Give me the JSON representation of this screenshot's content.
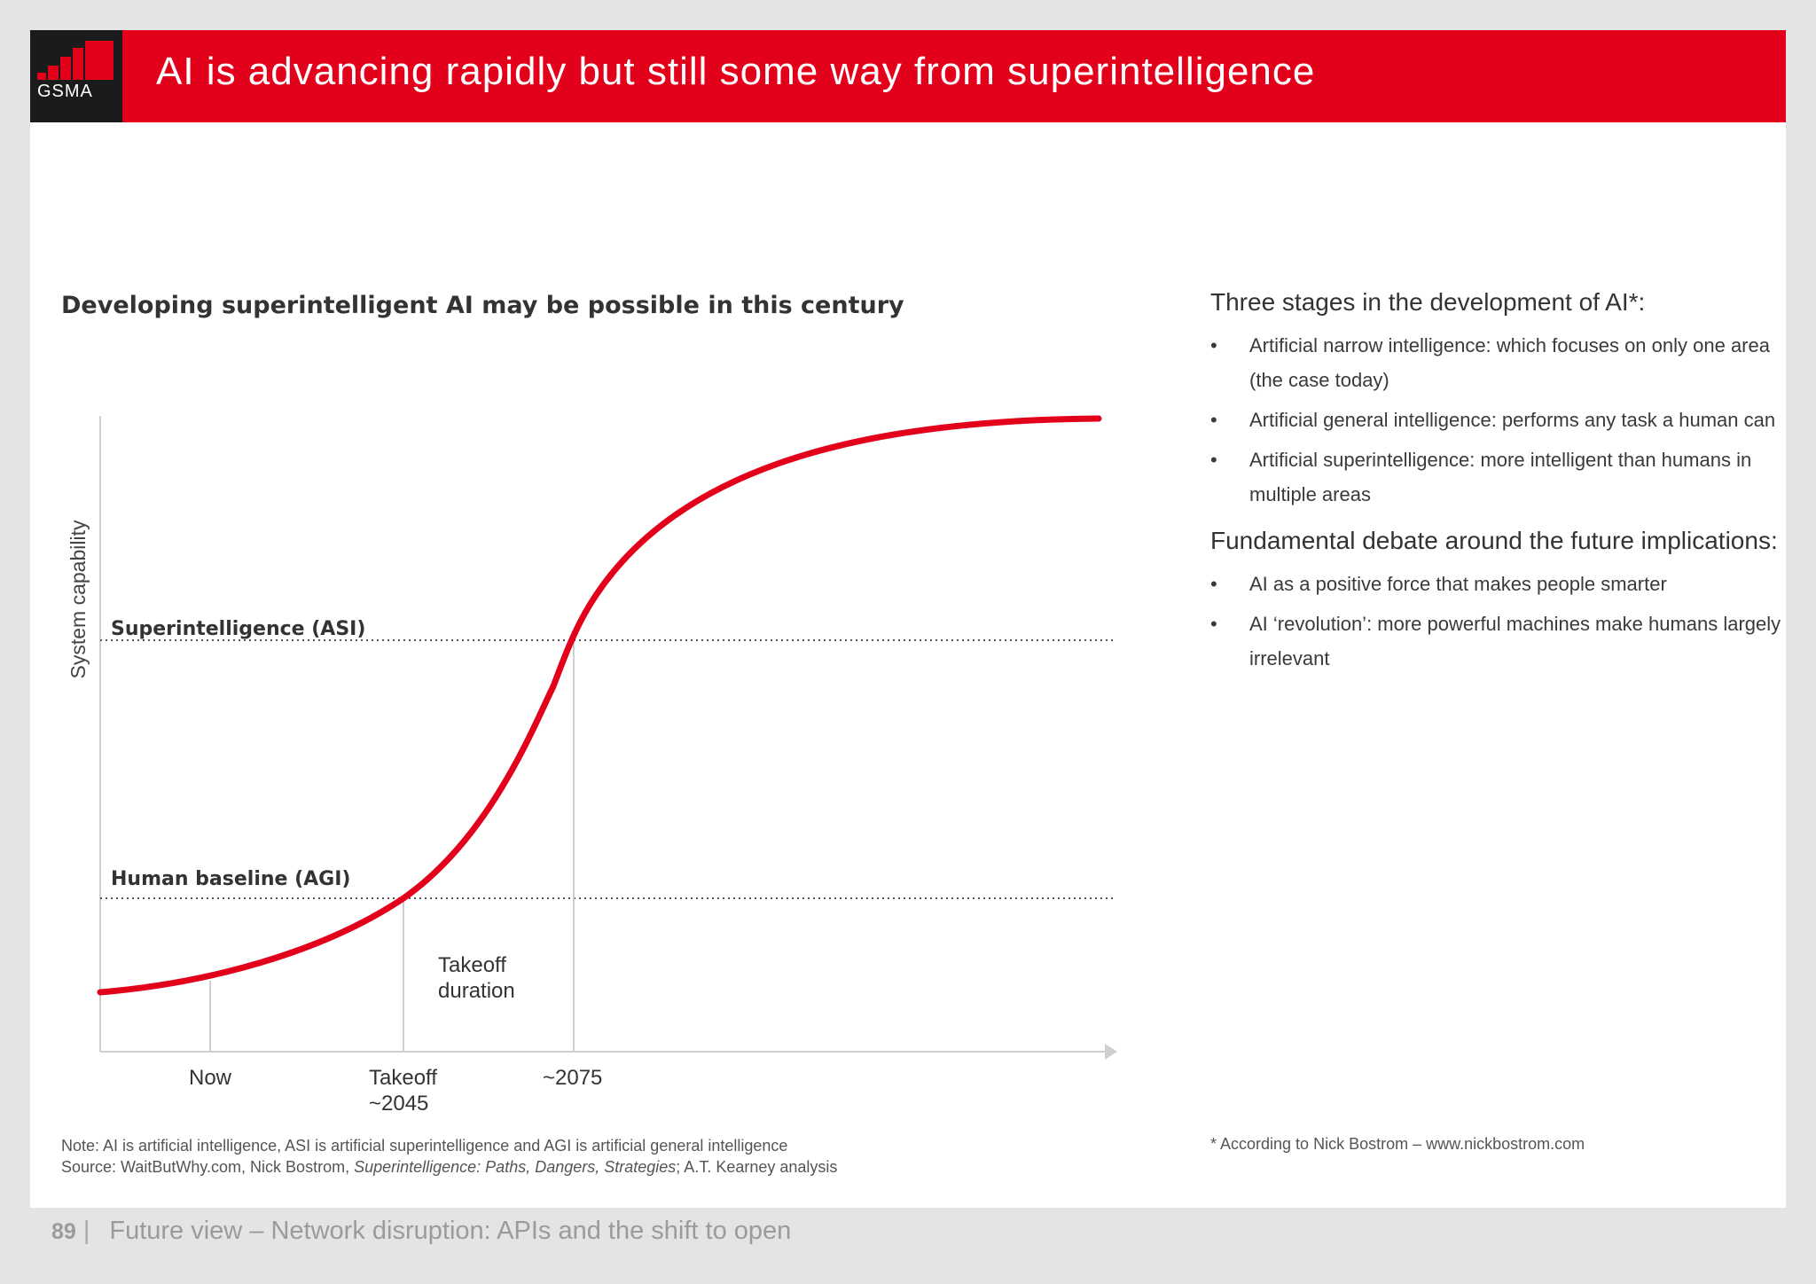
{
  "header": {
    "logo_text": "GSMA",
    "title": "AI is advancing rapidly but still some way from superintelligence",
    "accent_color": "#e2001a"
  },
  "chart": {
    "title": "Developing superintelligent AI may be possible in this century",
    "y_axis_label": "System capability",
    "threshold_asi_label": "Superintelligence (ASI)",
    "threshold_agi_label": "Human baseline (AGI)",
    "takeoff_note_line1": "Takeoff",
    "takeoff_note_line2": "duration",
    "tick_now": "Now",
    "tick_takeoff_line1": "Takeoff",
    "tick_takeoff_line2": "~2045",
    "tick_2075": "~2075",
    "curve_color": "#e2001a"
  },
  "chart_data": {
    "type": "line",
    "title": "Developing superintelligent AI may be possible in this century",
    "ylabel": "System capability",
    "xlabel": "",
    "x_ticks": [
      "Now",
      "Takeoff ~2045",
      "~2075"
    ],
    "reference_lines": [
      {
        "label": "Human baseline (AGI)",
        "value": 0.24
      },
      {
        "label": "Superintelligence (ASI)",
        "value": 0.64
      }
    ],
    "series": [
      {
        "values": [
          0.09,
          0.12,
          0.24,
          0.64,
          0.99
        ]
      }
    ],
    "grid": false
  },
  "side": {
    "heading1": "Three stages in the development of AI*:",
    "stages": [
      "Artificial narrow intelligence: which focuses on only one area (the case today)",
      "Artificial general intelligence: performs any task a human can",
      "Artificial superintelligence: more intelligent than humans in multiple areas"
    ],
    "heading2": "Fundamental debate around the future implications:",
    "debate": [
      "AI as a positive force that makes people smarter",
      "AI ‘revolution’: more powerful machines make humans largely irrelevant"
    ],
    "bullet": "•"
  },
  "notes": {
    "note_line": "Note: AI is artificial intelligence, ASI is artificial superintelligence and AGI is artificial general intelligence",
    "source_prefix": "Source: WaitButWhy.com, Nick Bostrom, ",
    "source_italic": "Superintelligence: Paths, Dangers, Strategies",
    "source_suffix": "; A.T. Kearney analysis",
    "footnote": "* According to Nick Bostrom – www.nickbostrom.com"
  },
  "footer": {
    "page_number": "89",
    "separator": "|",
    "text": "Future view – Network disruption: APIs and the shift to open"
  }
}
